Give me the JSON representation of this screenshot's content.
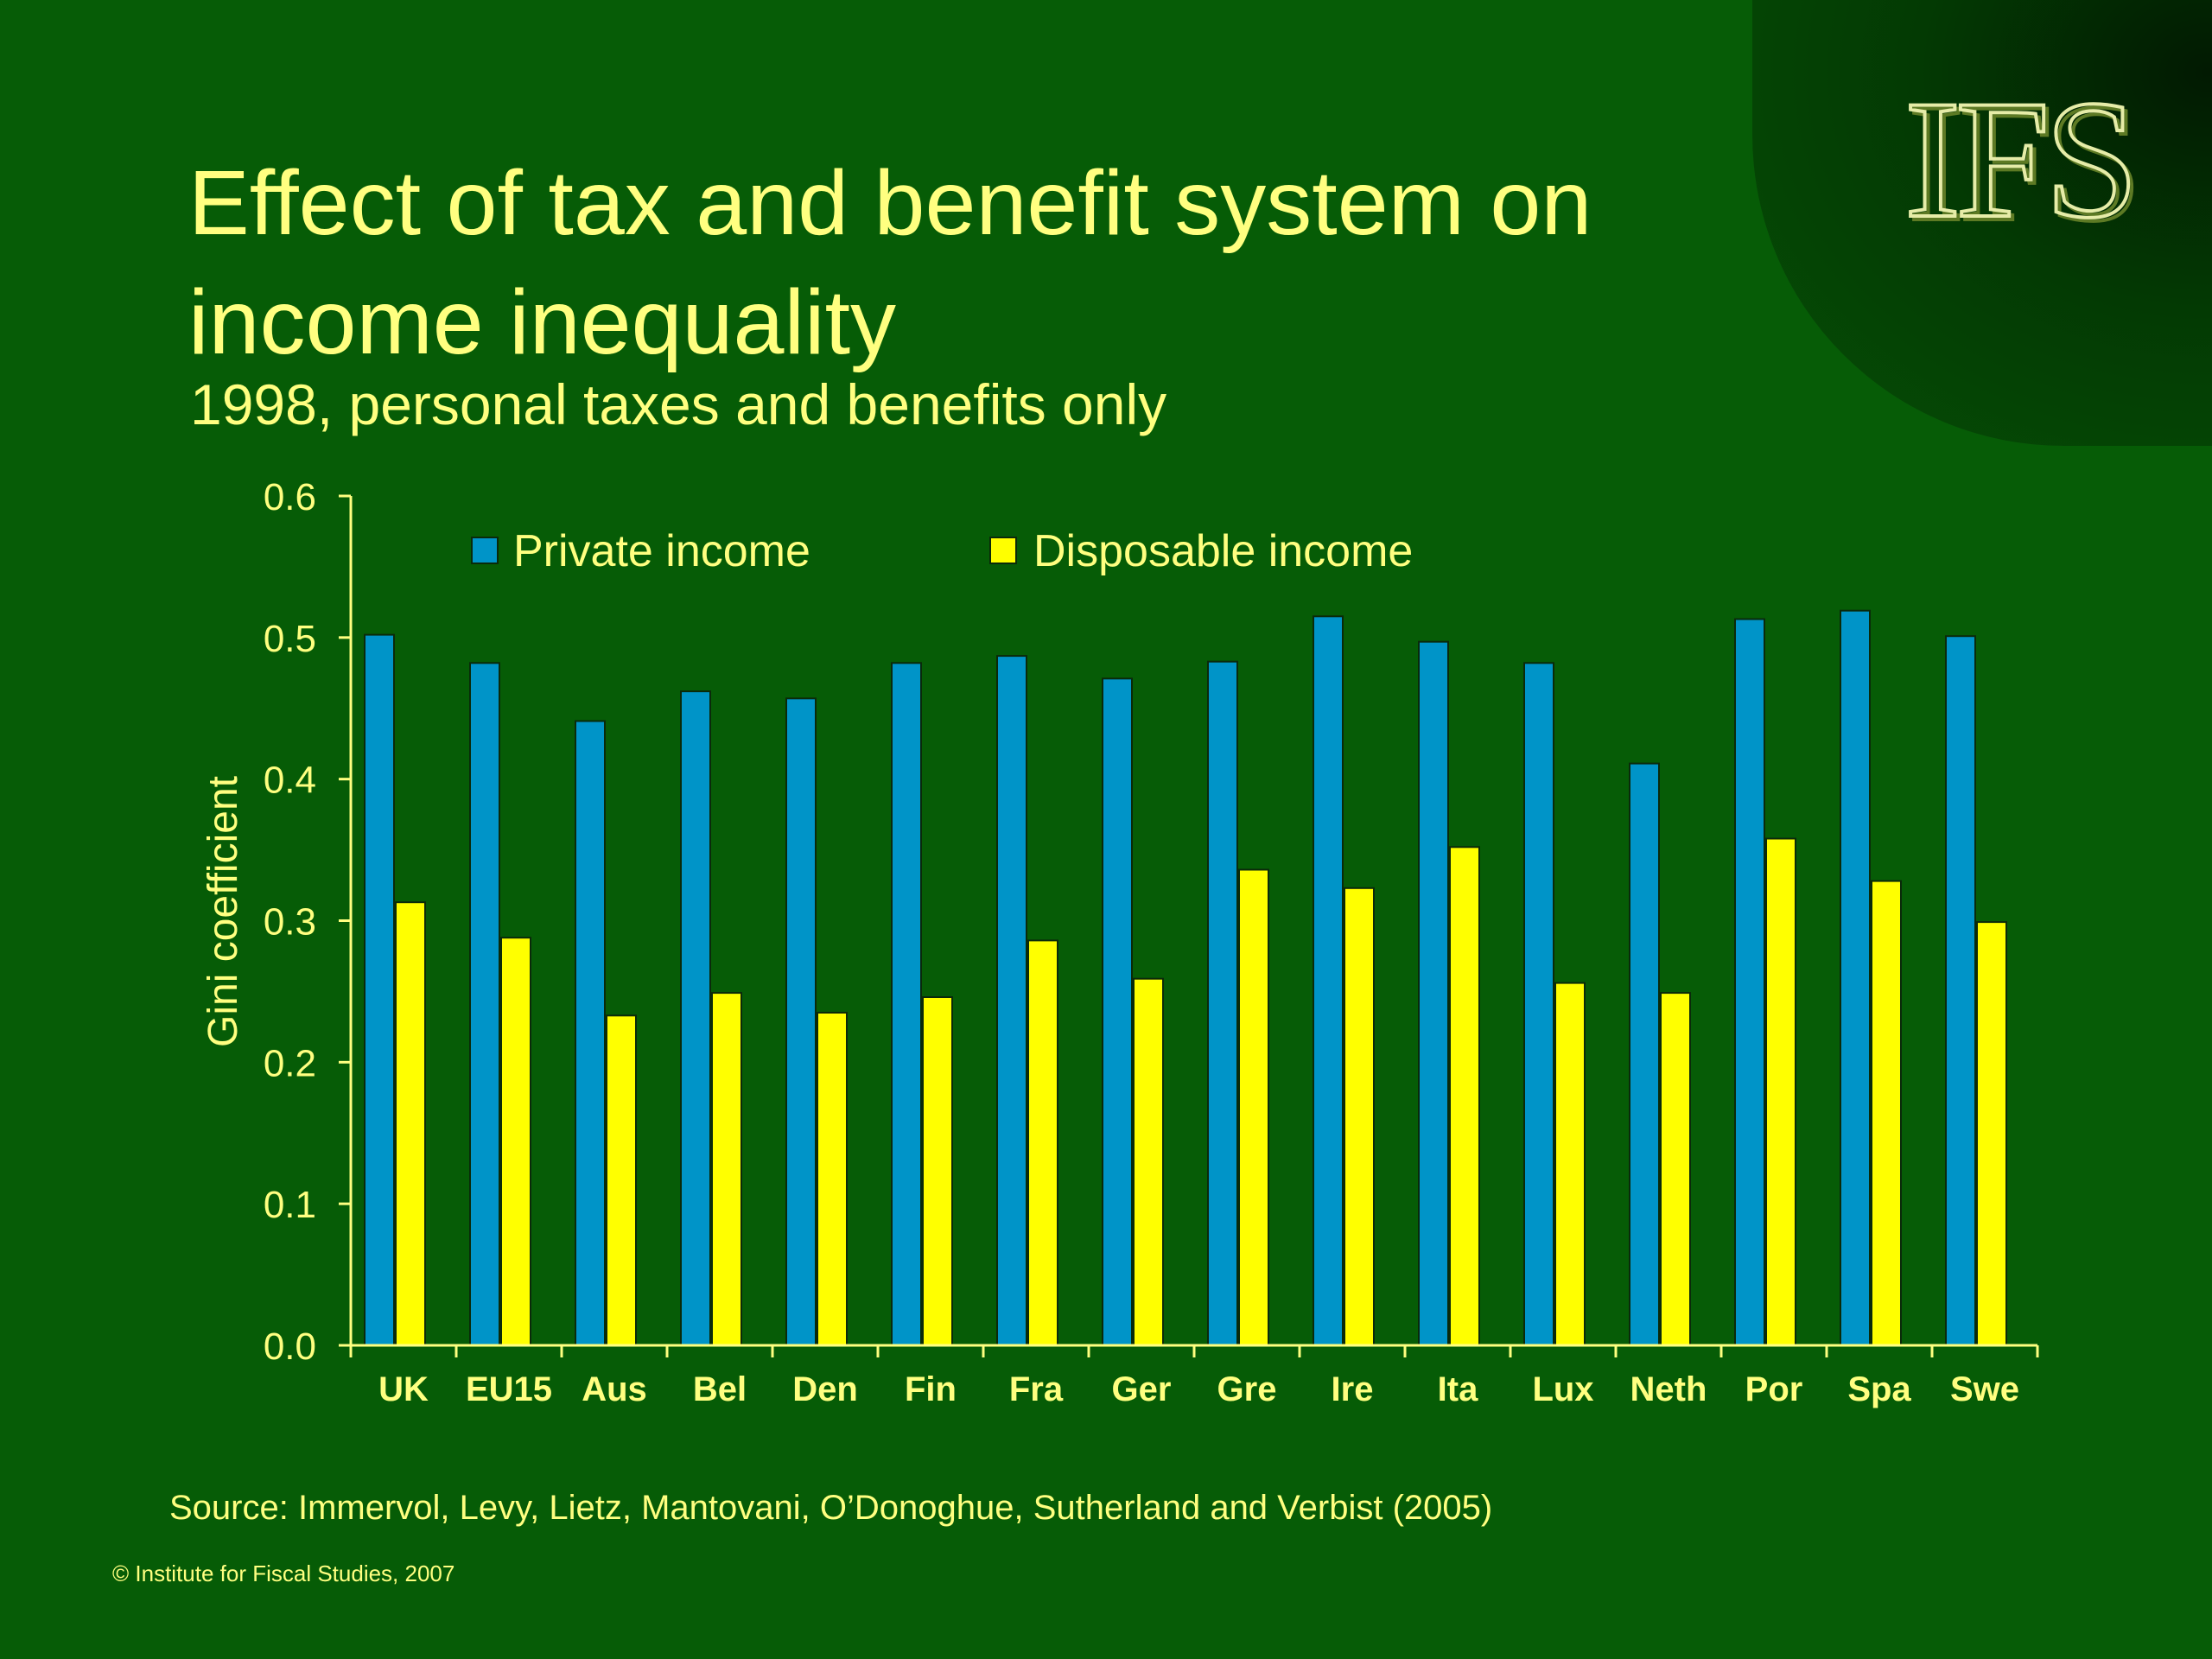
{
  "slide": {
    "title": "Effect of tax and benefit system on income inequality",
    "subtitle": "1998, personal taxes and benefits only",
    "source": "Source: Immervol, Levy, Lietz, Mantovani, O’Donoghue, Sutherland and Verbist (2005)",
    "copyright": "© Institute for Fiscal Studies, 2007",
    "logo_text": "IFS",
    "colors": {
      "background": "#065c06",
      "text": "#ffff80"
    }
  },
  "chart_data": {
    "type": "bar",
    "title": "",
    "xlabel": "",
    "ylabel": "Gini coefficient",
    "ylim": [
      0,
      0.6
    ],
    "yticks": [
      "0.0",
      "0.1",
      "0.2",
      "0.3",
      "0.4",
      "0.5",
      "0.6"
    ],
    "legend_position": "top",
    "categories": [
      "UK",
      "EU15",
      "Aus",
      "Bel",
      "Den",
      "Fin",
      "Fra",
      "Ger",
      "Gre",
      "Ire",
      "Ita",
      "Lux",
      "Neth",
      "Por",
      "Spa",
      "Swe"
    ],
    "series": [
      {
        "name": "Private income",
        "color": "#0094c8",
        "values": [
          0.502,
          0.482,
          0.441,
          0.462,
          0.457,
          0.482,
          0.487,
          0.471,
          0.483,
          0.515,
          0.497,
          0.482,
          0.411,
          0.513,
          0.519,
          0.501
        ]
      },
      {
        "name": "Disposable income",
        "color": "#ffff00",
        "values": [
          0.313,
          0.288,
          0.233,
          0.249,
          0.235,
          0.246,
          0.286,
          0.259,
          0.336,
          0.323,
          0.352,
          0.256,
          0.249,
          0.358,
          0.328,
          0.299
        ]
      }
    ]
  }
}
